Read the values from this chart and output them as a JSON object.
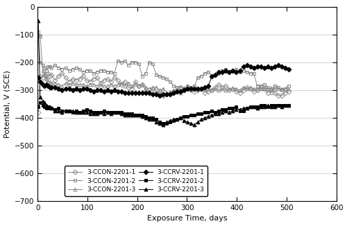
{
  "title": "",
  "xlabel": "Exposure Time, days",
  "ylabel": "Potential, V (SCE)",
  "xlim": [
    0,
    600
  ],
  "ylim": [
    -700,
    0
  ],
  "xticks": [
    0,
    100,
    200,
    300,
    400,
    500,
    600
  ],
  "yticks": [
    0,
    -100,
    -200,
    -300,
    -400,
    -500,
    -600,
    -700
  ],
  "series": {
    "3-CCON-2201-1": {
      "marker": "D",
      "fillstyle": "none",
      "color": "#888888",
      "linewidth": 0.7,
      "markersize": 3.5,
      "x": [
        1,
        5,
        10,
        14,
        18,
        21,
        25,
        28,
        35,
        42,
        49,
        56,
        63,
        70,
        77,
        84,
        91,
        98,
        105,
        112,
        119,
        126,
        133,
        140,
        147,
        154,
        161,
        168,
        175,
        182,
        189,
        196,
        203,
        210,
        217,
        224,
        231,
        238,
        245,
        252,
        259,
        266,
        273,
        280,
        287,
        294,
        301,
        308,
        315,
        322,
        329,
        336,
        343,
        350,
        357,
        364,
        371,
        378,
        385,
        392,
        399,
        406,
        413,
        420,
        427,
        434,
        441,
        448,
        455,
        462,
        469,
        476,
        483,
        490,
        497,
        504
      ],
      "y": [
        -380,
        -250,
        -255,
        -245,
        -260,
        -240,
        -250,
        -245,
        -265,
        -250,
        -240,
        -255,
        -270,
        -260,
        -265,
        -260,
        -250,
        -265,
        -270,
        -260,
        -255,
        -275,
        -265,
        -260,
        -270,
        -255,
        -265,
        -280,
        -270,
        -290,
        -295,
        -270,
        -285,
        -280,
        -300,
        -310,
        -295,
        -310,
        -305,
        -320,
        -315,
        -310,
        -305,
        -300,
        -290,
        -295,
        -290,
        -300,
        -305,
        -300,
        -295,
        -310,
        -305,
        -300,
        -290,
        -280,
        -290,
        -285,
        -300,
        -295,
        -305,
        -310,
        -300,
        -290,
        -295,
        -305,
        -300,
        -290,
        -295,
        -310,
        -295,
        -310,
        -320,
        -320,
        -310,
        -305
      ]
    },
    "3-CCON-2201-2": {
      "marker": "s",
      "fillstyle": "none",
      "color": "#888888",
      "linewidth": 0.7,
      "markersize": 3.5,
      "x": [
        1,
        5,
        10,
        14,
        18,
        21,
        25,
        28,
        35,
        42,
        49,
        56,
        63,
        70,
        77,
        84,
        91,
        98,
        105,
        112,
        119,
        126,
        133,
        140,
        147,
        154,
        161,
        168,
        175,
        182,
        189,
        196,
        203,
        210,
        217,
        224,
        231,
        238,
        245,
        252,
        259,
        266,
        273,
        280,
        287,
        294,
        301,
        308,
        315,
        322,
        329,
        336,
        343,
        350,
        357,
        364,
        371,
        378,
        385,
        392,
        399,
        406,
        413,
        420,
        427,
        434,
        441,
        448,
        455,
        462,
        469,
        476,
        483,
        490,
        497,
        504
      ],
      "y": [
        -90,
        -200,
        -210,
        -220,
        -230,
        -215,
        -215,
        -220,
        -210,
        -220,
        -225,
        -220,
        -230,
        -225,
        -220,
        -225,
        -235,
        -230,
        -230,
        -240,
        -235,
        -230,
        -230,
        -235,
        -235,
        -240,
        -195,
        -200,
        -195,
        -210,
        -200,
        -200,
        -205,
        -250,
        -240,
        -200,
        -205,
        -245,
        -250,
        -255,
        -260,
        -270,
        -285,
        -290,
        -290,
        -295,
        -285,
        -290,
        -285,
        -255,
        -250,
        -240,
        -235,
        -250,
        -245,
        -240,
        -230,
        -225,
        -235,
        -230,
        -225,
        -235,
        -230,
        -235,
        -240,
        -240,
        -285,
        -285,
        -280,
        -290,
        -310,
        -285,
        -290,
        -300,
        -295,
        -285
      ]
    },
    "3-CCON-2201-3": {
      "marker": "^",
      "fillstyle": "none",
      "color": "#888888",
      "linewidth": 0.7,
      "markersize": 3.5,
      "x": [
        1,
        5,
        10,
        14,
        18,
        21,
        25,
        28,
        35,
        42,
        49,
        56,
        63,
        70,
        77,
        84,
        91,
        98,
        105,
        112,
        119,
        126,
        133,
        140,
        147,
        154,
        161,
        168,
        175,
        182,
        189,
        196,
        203,
        210,
        217,
        224,
        231,
        238,
        245,
        252,
        259,
        266,
        273,
        280,
        287,
        294,
        301,
        308,
        315,
        322,
        329,
        336,
        343,
        350,
        357,
        364,
        371,
        378,
        385,
        392,
        399,
        406,
        413,
        420,
        427,
        434,
        441,
        448,
        455,
        462,
        469,
        476,
        483,
        490,
        497,
        504
      ],
      "y": [
        -100,
        -105,
        -230,
        -245,
        -260,
        -270,
        -270,
        -275,
        -275,
        -280,
        -285,
        -275,
        -280,
        -275,
        -280,
        -280,
        -280,
        -285,
        -280,
        -280,
        -285,
        -280,
        -285,
        -285,
        -280,
        -285,
        -280,
        -275,
        -285,
        -275,
        -285,
        -280,
        -285,
        -280,
        -290,
        -295,
        -290,
        -290,
        -300,
        -295,
        -310,
        -310,
        -300,
        -305,
        -310,
        -300,
        -295,
        -295,
        -295,
        -295,
        -295,
        -295,
        -295,
        -300,
        -295,
        -300,
        -295,
        -300,
        -295,
        -295,
        -295,
        -300,
        -290,
        -295,
        -290,
        -295,
        -295,
        -295,
        -295,
        -295,
        -295,
        -295,
        -295,
        -295,
        -295,
        -295
      ]
    },
    "3-CCRV-2201-1": {
      "marker": "D",
      "fillstyle": "full",
      "color": "#000000",
      "linewidth": 0.7,
      "markersize": 3.5,
      "x": [
        1,
        5,
        10,
        14,
        18,
        21,
        25,
        28,
        35,
        42,
        49,
        56,
        63,
        70,
        77,
        84,
        91,
        98,
        105,
        112,
        119,
        126,
        133,
        140,
        147,
        154,
        161,
        168,
        175,
        182,
        189,
        196,
        203,
        210,
        217,
        224,
        231,
        238,
        245,
        252,
        259,
        266,
        273,
        280,
        287,
        294,
        301,
        308,
        315,
        322,
        329,
        336,
        343,
        350,
        357,
        364,
        371,
        378,
        385,
        392,
        399,
        406,
        413,
        420,
        427,
        434,
        441,
        448,
        455,
        462,
        469,
        476,
        483,
        490,
        497,
        504
      ],
      "y": [
        -255,
        -270,
        -280,
        -285,
        -280,
        -285,
        -290,
        -290,
        -290,
        -295,
        -300,
        -295,
        -295,
        -300,
        -295,
        -300,
        -295,
        -295,
        -300,
        -305,
        -300,
        -300,
        -305,
        -300,
        -305,
        -300,
        -305,
        -305,
        -310,
        -310,
        -310,
        -310,
        -310,
        -310,
        -310,
        -310,
        -315,
        -315,
        -320,
        -315,
        -315,
        -315,
        -310,
        -305,
        -305,
        -300,
        -295,
        -295,
        -295,
        -295,
        -295,
        -290,
        -285,
        -250,
        -245,
        -235,
        -235,
        -230,
        -235,
        -230,
        -235,
        -230,
        -215,
        -210,
        -215,
        -220,
        -215,
        -215,
        -220,
        -215,
        -220,
        -215,
        -210,
        -215,
        -220,
        -225
      ]
    },
    "3-CCRV-2201-2": {
      "marker": "s",
      "fillstyle": "full",
      "color": "#000000",
      "linewidth": 0.7,
      "markersize": 3.5,
      "x": [
        1,
        5,
        10,
        14,
        18,
        21,
        25,
        28,
        35,
        42,
        49,
        56,
        63,
        70,
        77,
        84,
        91,
        98,
        105,
        112,
        119,
        126,
        133,
        140,
        147,
        154,
        161,
        168,
        175,
        182,
        189,
        196,
        203,
        210,
        217,
        224,
        231,
        238,
        245,
        252,
        259,
        266,
        273,
        280,
        287,
        294,
        301,
        308,
        315,
        322,
        329,
        336,
        343,
        350,
        357,
        364,
        371,
        378,
        385,
        392,
        399,
        406,
        413,
        420,
        427,
        434,
        441,
        448,
        455,
        462,
        469,
        476,
        483,
        490,
        497,
        504
      ],
      "y": [
        -360,
        -345,
        -355,
        -360,
        -365,
        -360,
        -365,
        -365,
        -370,
        -365,
        -375,
        -375,
        -375,
        -380,
        -375,
        -380,
        -375,
        -370,
        -375,
        -380,
        -380,
        -380,
        -375,
        -380,
        -380,
        -380,
        -380,
        -380,
        -385,
        -385,
        -385,
        -390,
        -390,
        -390,
        -395,
        -400,
        -400,
        -405,
        -415,
        -420,
        -420,
        -415,
        -410,
        -405,
        -400,
        -395,
        -395,
        -390,
        -390,
        -385,
        -385,
        -380,
        -380,
        -375,
        -380,
        -375,
        -370,
        -370,
        -365,
        -365,
        -360,
        -375,
        -375,
        -365,
        -360,
        -360,
        -360,
        -355,
        -355,
        -360,
        -355,
        -355,
        -355,
        -355,
        -355,
        -355
      ]
    },
    "3-CCRV-2201-3": {
      "marker": "^",
      "fillstyle": "full",
      "color": "#000000",
      "linewidth": 0.7,
      "markersize": 3.5,
      "x": [
        1,
        5,
        10,
        14,
        18,
        21,
        25,
        28,
        35,
        42,
        49,
        56,
        63,
        70,
        77,
        84,
        91,
        98,
        105,
        112,
        119,
        126,
        133,
        140,
        147,
        154,
        161,
        168,
        175,
        182,
        189,
        196,
        203,
        210,
        217,
        224,
        231,
        238,
        245,
        252,
        259,
        266,
        273,
        280,
        287,
        294,
        301,
        308,
        315,
        322,
        329,
        336,
        343,
        350,
        357,
        364,
        371,
        378,
        385,
        392,
        399,
        406,
        413,
        420,
        427,
        434,
        441,
        448,
        455,
        462,
        469,
        476,
        483,
        490,
        497,
        504
      ],
      "y": [
        -50,
        -325,
        -340,
        -345,
        -355,
        -360,
        -360,
        -365,
        -375,
        -375,
        -380,
        -375,
        -375,
        -375,
        -380,
        -380,
        -380,
        -380,
        -385,
        -385,
        -385,
        -380,
        -385,
        -380,
        -385,
        -380,
        -380,
        -385,
        -390,
        -390,
        -390,
        -390,
        -390,
        -395,
        -400,
        -405,
        -405,
        -415,
        -420,
        -425,
        -415,
        -410,
        -405,
        -405,
        -400,
        -410,
        -415,
        -420,
        -425,
        -415,
        -405,
        -400,
        -395,
        -390,
        -385,
        -385,
        -380,
        -375,
        -380,
        -375,
        -370,
        -370,
        -365,
        -365,
        -360,
        -360,
        -365,
        -360,
        -360,
        -355,
        -360,
        -360,
        -355,
        -360,
        -355,
        -355
      ]
    }
  },
  "legend_labels": [
    "3-CCON-2201-1",
    "3-CCON-2201-2",
    "3-CCON-2201-3",
    "3-CCRV-2201-1",
    "3-CCRV-2201-2",
    "3-CCRV-2201-3"
  ],
  "background_color": "#ffffff",
  "grid_color": "#cccccc"
}
